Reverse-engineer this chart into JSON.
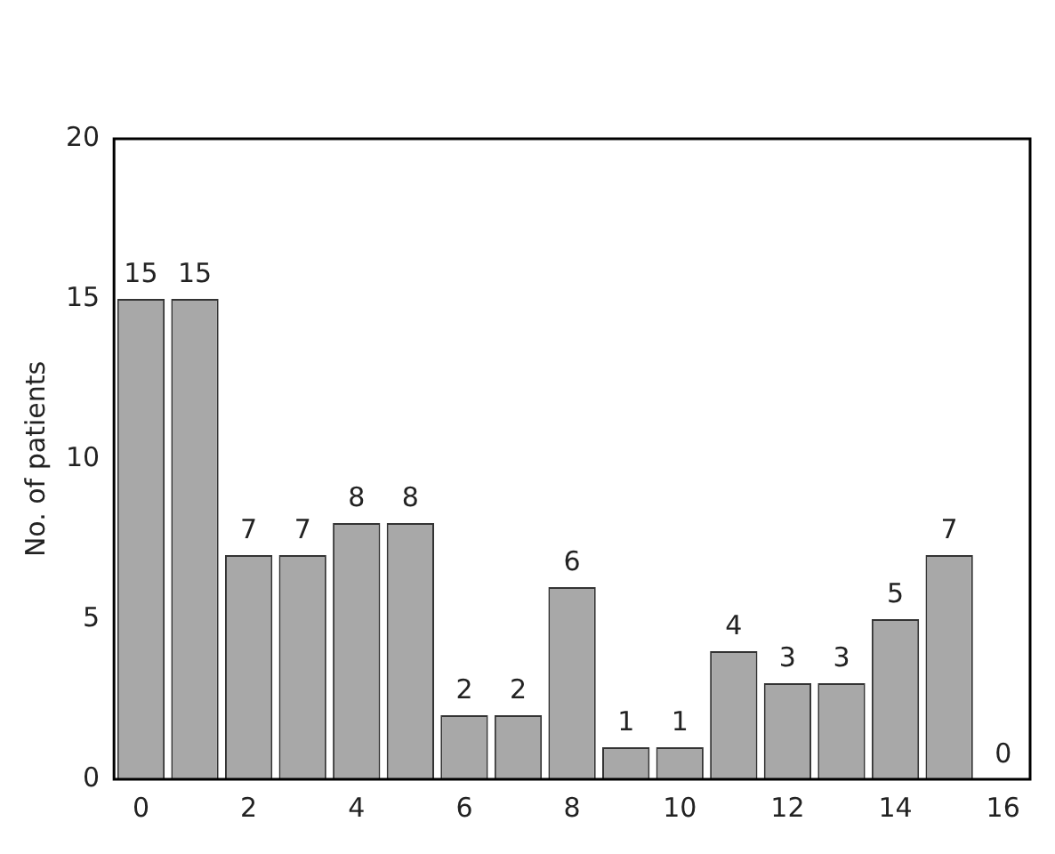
{
  "chart_data": {
    "type": "bar",
    "ylabel": "No. of patients",
    "categories": [
      "0",
      null,
      "2",
      null,
      "4",
      null,
      "6",
      null,
      "8",
      null,
      "10",
      null,
      "12",
      null,
      "14",
      null,
      "16"
    ],
    "values": [
      15,
      15,
      7,
      7,
      8,
      8,
      2,
      2,
      6,
      1,
      1,
      4,
      3,
      3,
      5,
      7,
      0
    ],
    "color": "#a8a8a8",
    "ylim": [
      0,
      20
    ],
    "yticks": [
      0,
      5,
      10,
      15,
      20
    ],
    "grid": false,
    "legend": false,
    "data_labels": true
  }
}
